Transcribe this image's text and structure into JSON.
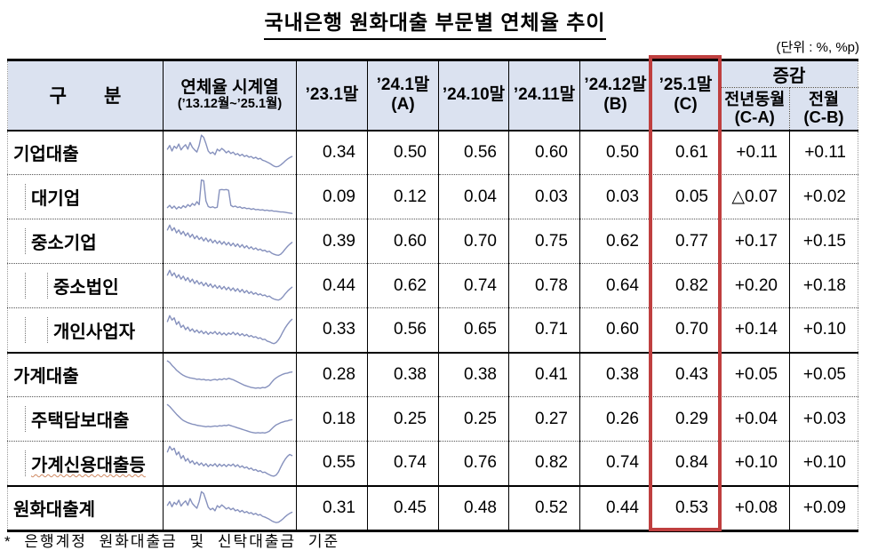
{
  "title": "국내은행 원화대출 부문별 연체율 추이",
  "unit_note": "(단위 : %, %p)",
  "footnote": "* 은행계정 원화대출금 및 신탁대출금 기준",
  "colors": {
    "header_bg": "#dbe2f0",
    "sparkline": "#8691bd",
    "highlight_box": "#bf3f3f",
    "border": "#000000"
  },
  "table": {
    "headers": {
      "category": "구　　분",
      "series": "연체율 시계열",
      "series_sub": "(’13.12월~’25.1월)",
      "cols": [
        {
          "label": "’23.1말",
          "sub": ""
        },
        {
          "label": "’24.1말",
          "sub": "(A)"
        },
        {
          "label": "’24.10말",
          "sub": ""
        },
        {
          "label": "’24.11말",
          "sub": ""
        },
        {
          "label": "’24.12말",
          "sub": "(B)"
        },
        {
          "label": "’25.1말",
          "sub": "(C)"
        }
      ],
      "change_group": "증감",
      "change_cols": [
        {
          "label": "전년동월",
          "sub": "(C-A)"
        },
        {
          "label": "전월",
          "sub": "(C-B)"
        }
      ]
    },
    "rows": [
      {
        "label": "기업대출",
        "indent": 0,
        "values": [
          "0.34",
          "0.50",
          "0.56",
          "0.60",
          "0.50",
          "0.61",
          "+0.11",
          "+0.11"
        ],
        "spark": [
          0.6,
          0.7,
          0.55,
          0.68,
          0.62,
          0.74,
          0.58,
          0.66,
          0.72,
          0.6,
          0.78,
          0.65,
          0.58,
          0.52,
          0.7,
          0.98,
          0.92,
          0.75,
          0.55,
          0.48,
          0.52,
          0.45,
          0.6,
          0.55,
          0.62,
          0.57,
          0.5,
          0.55,
          0.48,
          0.52,
          0.45,
          0.48,
          0.42,
          0.46,
          0.4,
          0.43,
          0.38,
          0.4,
          0.35,
          0.38,
          0.33,
          0.35,
          0.3,
          0.28,
          0.25,
          0.22,
          0.18,
          0.14,
          0.12,
          0.13,
          0.17,
          0.22,
          0.28,
          0.33,
          0.37,
          0.4
        ]
      },
      {
        "label": "대기업",
        "indent": 1,
        "values": [
          "0.09",
          "0.12",
          "0.04",
          "0.03",
          "0.03",
          "0.05",
          "△0.07",
          "+0.02"
        ],
        "spark": [
          0.22,
          0.28,
          0.2,
          0.26,
          0.18,
          0.24,
          0.2,
          0.27,
          0.22,
          0.3,
          0.25,
          0.33,
          0.28,
          0.38,
          0.3,
          0.97,
          0.95,
          0.4,
          0.25,
          0.22,
          0.24,
          0.21,
          0.23,
          0.7,
          0.71,
          0.7,
          0.71,
          0.69,
          0.28,
          0.24,
          0.26,
          0.22,
          0.24,
          0.2,
          0.22,
          0.19,
          0.2,
          0.17,
          0.19,
          0.16,
          0.17,
          0.15,
          0.16,
          0.14,
          0.15,
          0.13,
          0.14,
          0.12,
          0.12,
          0.11,
          0.1,
          0.1,
          0.09,
          0.08,
          0.07,
          0.06
        ]
      },
      {
        "label": "중소기업",
        "indent": 1,
        "values": [
          "0.39",
          "0.60",
          "0.70",
          "0.75",
          "0.62",
          "0.77",
          "+0.17",
          "+0.15"
        ],
        "spark": [
          0.82,
          0.95,
          0.8,
          0.88,
          0.74,
          0.82,
          0.7,
          0.78,
          0.66,
          0.74,
          0.62,
          0.7,
          0.58,
          0.66,
          0.56,
          0.62,
          0.52,
          0.6,
          0.5,
          0.57,
          0.47,
          0.54,
          0.45,
          0.52,
          0.43,
          0.5,
          0.41,
          0.48,
          0.39,
          0.46,
          0.37,
          0.44,
          0.35,
          0.42,
          0.33,
          0.39,
          0.31,
          0.36,
          0.29,
          0.33,
          0.27,
          0.3,
          0.25,
          0.27,
          0.22,
          0.24,
          0.19,
          0.16,
          0.14,
          0.13,
          0.16,
          0.22,
          0.3,
          0.37,
          0.43,
          0.48
        ]
      },
      {
        "label": "중소법인",
        "indent": 2,
        "values": [
          "0.44",
          "0.62",
          "0.74",
          "0.78",
          "0.64",
          "0.82",
          "+0.20",
          "+0.18"
        ],
        "spark": [
          0.8,
          0.93,
          0.78,
          0.86,
          0.73,
          0.81,
          0.69,
          0.77,
          0.65,
          0.73,
          0.61,
          0.69,
          0.57,
          0.65,
          0.55,
          0.61,
          0.51,
          0.59,
          0.49,
          0.56,
          0.46,
          0.53,
          0.44,
          0.51,
          0.42,
          0.49,
          0.4,
          0.47,
          0.38,
          0.45,
          0.36,
          0.43,
          0.34,
          0.41,
          0.32,
          0.38,
          0.3,
          0.35,
          0.28,
          0.32,
          0.26,
          0.29,
          0.24,
          0.26,
          0.21,
          0.23,
          0.18,
          0.15,
          0.13,
          0.12,
          0.15,
          0.21,
          0.29,
          0.36,
          0.42,
          0.47
        ]
      },
      {
        "label": "개인사업자",
        "indent": 2,
        "values": [
          "0.33",
          "0.56",
          "0.65",
          "0.71",
          "0.60",
          "0.70",
          "+0.14",
          "+0.10"
        ],
        "spark": [
          0.72,
          0.88,
          0.76,
          0.82,
          0.64,
          0.72,
          0.56,
          0.62,
          0.5,
          0.57,
          0.46,
          0.52,
          0.43,
          0.49,
          0.41,
          0.47,
          0.39,
          0.45,
          0.37,
          0.43,
          0.39,
          0.45,
          0.37,
          0.43,
          0.36,
          0.41,
          0.35,
          0.41,
          0.37,
          0.43,
          0.36,
          0.41,
          0.34,
          0.39,
          0.33,
          0.37,
          0.31,
          0.34,
          0.29,
          0.31,
          0.26,
          0.28,
          0.23,
          0.24,
          0.19,
          0.17,
          0.14,
          0.12,
          0.15,
          0.22,
          0.32,
          0.44,
          0.55,
          0.64,
          0.72,
          0.78
        ]
      },
      {
        "label": "가계대출",
        "indent": 0,
        "values": [
          "0.28",
          "0.38",
          "0.38",
          "0.41",
          "0.38",
          "0.43",
          "+0.05",
          "+0.05"
        ],
        "spark": [
          0.88,
          0.84,
          0.76,
          0.7,
          0.63,
          0.58,
          0.53,
          0.49,
          0.46,
          0.44,
          0.42,
          0.41,
          0.4,
          0.38,
          0.39,
          0.37,
          0.38,
          0.36,
          0.37,
          0.35,
          0.37,
          0.38,
          0.36,
          0.39,
          0.37,
          0.4,
          0.38,
          0.41,
          0.39,
          0.37,
          0.34,
          0.31,
          0.28,
          0.25,
          0.22,
          0.2,
          0.18,
          0.16,
          0.15,
          0.14,
          0.15,
          0.14,
          0.16,
          0.15,
          0.18,
          0.22,
          0.3,
          0.37,
          0.42,
          0.46,
          0.49,
          0.52,
          0.54,
          0.55,
          0.57,
          0.58
        ]
      },
      {
        "label": "주택담보대출",
        "indent": 1,
        "values": [
          "0.18",
          "0.25",
          "0.25",
          "0.27",
          "0.26",
          "0.29",
          "+0.04",
          "+0.03"
        ],
        "spark": [
          0.9,
          0.85,
          0.78,
          0.71,
          0.64,
          0.58,
          0.52,
          0.47,
          0.44,
          0.41,
          0.39,
          0.37,
          0.36,
          0.34,
          0.33,
          0.32,
          0.31,
          0.3,
          0.31,
          0.3,
          0.31,
          0.32,
          0.31,
          0.33,
          0.32,
          0.34,
          0.33,
          0.35,
          0.33,
          0.31,
          0.29,
          0.27,
          0.25,
          0.23,
          0.21,
          0.19,
          0.17,
          0.15,
          0.14,
          0.13,
          0.14,
          0.13,
          0.14,
          0.13,
          0.15,
          0.18,
          0.24,
          0.3,
          0.35,
          0.38,
          0.41,
          0.43,
          0.45,
          0.46,
          0.48,
          0.49
        ]
      },
      {
        "label": "가계신용대출등",
        "indent": 1,
        "values": [
          "0.55",
          "0.74",
          "0.76",
          "0.82",
          "0.74",
          "0.84",
          "+0.10",
          "+0.10"
        ],
        "spark": [
          0.8,
          0.95,
          0.85,
          0.9,
          0.72,
          0.8,
          0.62,
          0.7,
          0.55,
          0.62,
          0.5,
          0.56,
          0.46,
          0.52,
          0.44,
          0.5,
          0.42,
          0.48,
          0.4,
          0.46,
          0.42,
          0.48,
          0.4,
          0.47,
          0.41,
          0.46,
          0.4,
          0.46,
          0.42,
          0.47,
          0.4,
          0.45,
          0.38,
          0.42,
          0.36,
          0.39,
          0.33,
          0.36,
          0.3,
          0.32,
          0.27,
          0.29,
          0.24,
          0.25,
          0.21,
          0.18,
          0.15,
          0.14,
          0.17,
          0.25,
          0.38,
          0.5,
          0.6,
          0.68,
          0.73,
          0.7
        ]
      },
      {
        "label": "원화대출계",
        "indent": 0,
        "values": [
          "0.31",
          "0.45",
          "0.48",
          "0.52",
          "0.44",
          "0.53",
          "+0.08",
          "+0.09"
        ],
        "spark": [
          0.58,
          0.68,
          0.54,
          0.66,
          0.6,
          0.72,
          0.56,
          0.64,
          0.7,
          0.58,
          0.76,
          0.63,
          0.56,
          0.5,
          0.68,
          0.95,
          0.9,
          0.72,
          0.53,
          0.46,
          0.5,
          0.43,
          0.57,
          0.52,
          0.59,
          0.54,
          0.48,
          0.52,
          0.46,
          0.5,
          0.43,
          0.46,
          0.4,
          0.44,
          0.38,
          0.41,
          0.36,
          0.38,
          0.33,
          0.36,
          0.31,
          0.33,
          0.28,
          0.26,
          0.23,
          0.2,
          0.16,
          0.13,
          0.11,
          0.12,
          0.16,
          0.21,
          0.27,
          0.32,
          0.36,
          0.39
        ]
      }
    ]
  }
}
